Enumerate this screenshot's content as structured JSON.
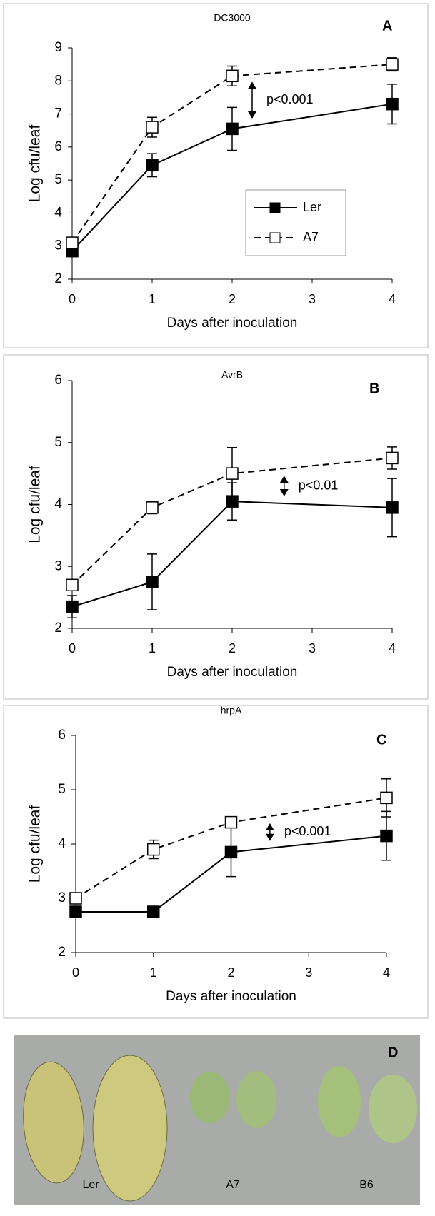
{
  "chart_data": [
    {
      "type": "line",
      "label": "A",
      "title": "DC3000",
      "x_label": "Days after inoculation",
      "y_label": "Log cfu/leaf",
      "x": [
        0,
        1,
        2,
        4
      ],
      "xlim": [
        0,
        4
      ],
      "xticks": [
        0,
        1,
        2,
        3,
        4
      ],
      "ylim": [
        2,
        9
      ],
      "yticks": [
        2,
        3,
        4,
        5,
        6,
        7,
        8,
        9
      ],
      "legend": "lower right",
      "annotation": "p<0.001",
      "series": [
        {
          "name": "Ler",
          "color": "#000000",
          "marker": "filled-square",
          "line_style": "solid",
          "values": [
            2.85,
            5.45,
            6.55,
            7.3
          ],
          "errors": [
            0.15,
            0.35,
            0.65,
            0.6
          ]
        },
        {
          "name": "A7",
          "color": "#000000",
          "marker": "open-square",
          "line_style": "dashed",
          "values": [
            3.1,
            6.6,
            8.15,
            8.5
          ],
          "errors": [
            0.15,
            0.3,
            0.3,
            0.2
          ]
        }
      ]
    },
    {
      "type": "line",
      "label": "B",
      "title": "AvrB",
      "x_label": "Days after inoculation",
      "y_label": "Log cfu/leaf",
      "x": [
        0,
        1,
        2,
        4
      ],
      "xlim": [
        0,
        4
      ],
      "xticks": [
        0,
        1,
        2,
        3,
        4
      ],
      "ylim": [
        2,
        6
      ],
      "yticks": [
        2,
        3,
        4,
        5,
        6
      ],
      "annotation": "p<0.01",
      "series": [
        {
          "color": "#000000",
          "marker": "filled-square",
          "line_style": "solid",
          "values": [
            2.35,
            2.75,
            4.05,
            3.95
          ],
          "errors": [
            0.18,
            0.45,
            0.3,
            0.47
          ]
        },
        {
          "color": "#000000",
          "marker": "open-square",
          "line_style": "dashed",
          "values": [
            2.7,
            3.95,
            4.5,
            4.75
          ],
          "errors": [
            0.08,
            0.1,
            0.42,
            0.18
          ]
        }
      ]
    },
    {
      "type": "line",
      "label": "C",
      "title": "hrpA",
      "x_label": "Days after inoculation",
      "y_label": "Log cfu/leaf",
      "x": [
        0,
        1,
        2,
        4
      ],
      "xlim": [
        0,
        4
      ],
      "xticks": [
        0,
        1,
        2,
        3,
        4
      ],
      "ylim": [
        2,
        6
      ],
      "yticks": [
        2,
        3,
        4,
        5,
        6
      ],
      "annotation": "p<0.001",
      "series": [
        {
          "color": "#000000",
          "marker": "filled-square",
          "line_style": "solid",
          "values": [
            2.75,
            2.75,
            3.85,
            4.15
          ],
          "errors": [
            0.05,
            0.05,
            0.45,
            0.45
          ]
        },
        {
          "color": "#000000",
          "marker": "open-square",
          "line_style": "dashed",
          "values": [
            3.0,
            3.9,
            4.4,
            4.85
          ],
          "errors": [
            0.05,
            0.17,
            0.1,
            0.35
          ]
        }
      ]
    }
  ],
  "photo": {
    "label": "D",
    "captions": [
      "Ler",
      "A7",
      "B6"
    ]
  }
}
